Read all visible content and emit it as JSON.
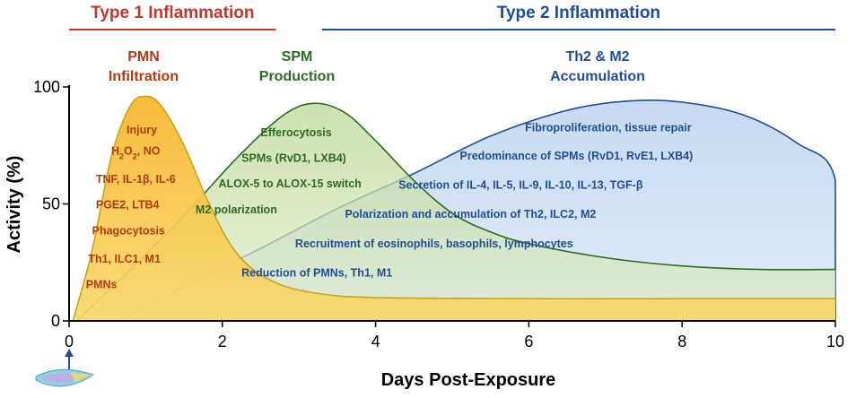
{
  "chart_data": {
    "type": "area",
    "xlabel": "Days Post-Exposure",
    "ylabel": "Activity (%)",
    "xlim": [
      0,
      10
    ],
    "ylim": [
      0,
      100
    ],
    "x_ticks": [
      "0",
      "2",
      "4",
      "6",
      "8",
      "10"
    ],
    "y_ticks": [
      "0",
      "50",
      "100"
    ],
    "phases": [
      {
        "label": "Type 1 Inflammation",
        "x_range": [
          0,
          2.7
        ],
        "color": "#c0392b"
      },
      {
        "label": "Type 2 Inflammation",
        "x_range": [
          3.3,
          10
        ],
        "color": "#1f4e96"
      }
    ],
    "series": [
      {
        "key": "pmn",
        "heading": [
          "PMN",
          "Infiltration"
        ],
        "color": "#c8a416",
        "fill": "#f5c842",
        "text_color": "#b03a12",
        "points": [
          [
            0.05,
            0
          ],
          [
            0.3,
            30
          ],
          [
            0.55,
            70
          ],
          [
            0.8,
            92
          ],
          [
            1.0,
            96
          ],
          [
            1.2,
            92
          ],
          [
            1.5,
            75
          ],
          [
            1.8,
            52
          ],
          [
            2.1,
            33
          ],
          [
            2.4,
            22
          ],
          [
            2.8,
            15
          ],
          [
            3.3,
            11.5
          ],
          [
            4,
            10
          ],
          [
            6,
            9.5
          ],
          [
            8,
            9.5
          ],
          [
            10,
            9.5
          ]
        ],
        "annotations": [
          {
            "html": "Injury",
            "x": 0.75,
            "y": 80
          },
          {
            "html": "H<tspan baseline-shift=\"sub\" font-size=\"9\">2</tspan>O<tspan baseline-shift=\"sub\" font-size=\"9\">2</tspan>, NO",
            "x": 0.55,
            "y": 71
          },
          {
            "html": "TNF, IL-1β, IL-6",
            "x": 0.35,
            "y": 59
          },
          {
            "html": "PGE2, LTB4",
            "x": 0.35,
            "y": 48
          },
          {
            "html": "Phagocytosis",
            "x": 0.3,
            "y": 37
          },
          {
            "html": "Th1, ILC1, M1",
            "x": 0.25,
            "y": 25
          },
          {
            "html": "PMNs",
            "x": 0.22,
            "y": 14
          }
        ]
      },
      {
        "key": "spm",
        "heading": [
          "SPM",
          "Production"
        ],
        "color": "#2d6b1e",
        "fill": "#c4dda0",
        "text_color": "#2d6b1e",
        "points": [
          [
            0.1,
            0
          ],
          [
            0.8,
            22
          ],
          [
            1.5,
            45
          ],
          [
            2.2,
            70
          ],
          [
            2.8,
            88
          ],
          [
            3.2,
            93
          ],
          [
            3.6,
            89
          ],
          [
            4.0,
            77
          ],
          [
            4.5,
            60
          ],
          [
            5.0,
            46
          ],
          [
            5.5,
            38
          ],
          [
            6,
            33
          ],
          [
            7,
            27
          ],
          [
            8,
            23.5
          ],
          [
            9,
            22
          ],
          [
            10,
            22
          ]
        ],
        "annotations": [
          {
            "text": "Efferocytosis",
            "x": 2.5,
            "y": 79
          },
          {
            "text": "SPMs (RvD1, LXB4)",
            "x": 2.25,
            "y": 68
          },
          {
            "text": "ALOX-5 to ALOX-15 switch",
            "x": 1.95,
            "y": 57
          },
          {
            "text": "M2 polarization",
            "x": 1.65,
            "y": 46
          }
        ]
      },
      {
        "key": "th2",
        "heading": [
          "Th2 & M2",
          "Accumulation"
        ],
        "color": "#1f4e96",
        "fill": "#b9d0ec",
        "text_color": "#1f4e96",
        "points": [
          [
            0.65,
            0
          ],
          [
            1.5,
            15
          ],
          [
            2.5,
            31
          ],
          [
            3.5,
            48
          ],
          [
            4.5,
            63
          ],
          [
            5.5,
            79
          ],
          [
            6.5,
            90
          ],
          [
            7.3,
            94
          ],
          [
            8,
            93.5
          ],
          [
            8.8,
            88
          ],
          [
            9.5,
            76
          ],
          [
            10,
            60
          ],
          [
            10,
            0
          ]
        ],
        "annotations": [
          {
            "text": "Fibroproliferation, tissue repair",
            "x": 5.95,
            "y": 81
          },
          {
            "text": "Predominance of SPMs (RvD1, RvE1, LXB4)",
            "x": 5.1,
            "y": 69
          },
          {
            "html": "Secretion of IL-4, IL-5, IL-9, IL-10, IL-13, TGF-β",
            "x": 4.3,
            "y": 56.5
          },
          {
            "text": "Polarization and accumulation of Th2, ILC2, M2",
            "x": 3.6,
            "y": 44
          },
          {
            "text": "Recruitment of eosinophils, basophils, lymphocytes",
            "x": 2.95,
            "y": 31.5
          },
          {
            "text": "Reduction of PMNs, Th1, M1",
            "x": 2.25,
            "y": 19
          }
        ]
      }
    ]
  }
}
